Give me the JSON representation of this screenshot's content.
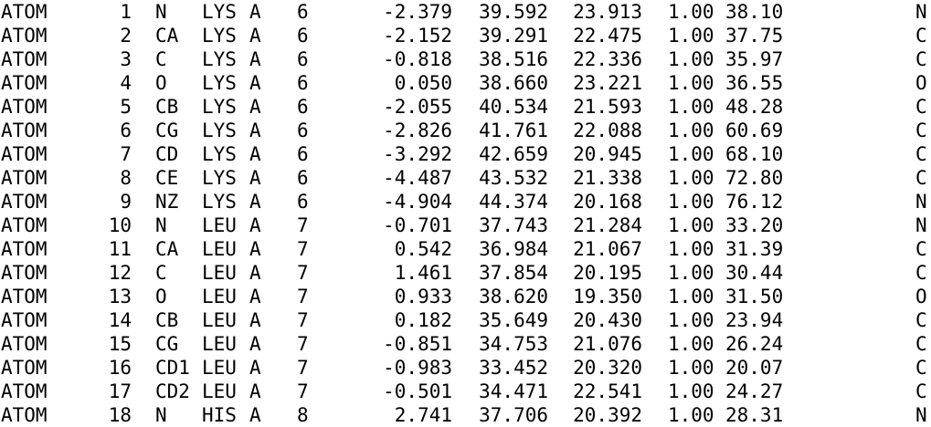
{
  "pdb_listing": {
    "rows": [
      {
        "record": "ATOM",
        "serial": "1",
        "atom": "N",
        "residue": "LYS",
        "chain": "A",
        "seq": "6",
        "x": "-2.379",
        "y": "39.592",
        "z": "23.913",
        "occupancy": "1.00",
        "bfactor": "38.10",
        "element": "N"
      },
      {
        "record": "ATOM",
        "serial": "2",
        "atom": "CA",
        "residue": "LYS",
        "chain": "A",
        "seq": "6",
        "x": "-2.152",
        "y": "39.291",
        "z": "22.475",
        "occupancy": "1.00",
        "bfactor": "37.75",
        "element": "C"
      },
      {
        "record": "ATOM",
        "serial": "3",
        "atom": "C",
        "residue": "LYS",
        "chain": "A",
        "seq": "6",
        "x": "-0.818",
        "y": "38.516",
        "z": "22.336",
        "occupancy": "1.00",
        "bfactor": "35.97",
        "element": "C"
      },
      {
        "record": "ATOM",
        "serial": "4",
        "atom": "O",
        "residue": "LYS",
        "chain": "A",
        "seq": "6",
        "x": "0.050",
        "y": "38.660",
        "z": "23.221",
        "occupancy": "1.00",
        "bfactor": "36.55",
        "element": "O"
      },
      {
        "record": "ATOM",
        "serial": "5",
        "atom": "CB",
        "residue": "LYS",
        "chain": "A",
        "seq": "6",
        "x": "-2.055",
        "y": "40.534",
        "z": "21.593",
        "occupancy": "1.00",
        "bfactor": "48.28",
        "element": "C"
      },
      {
        "record": "ATOM",
        "serial": "6",
        "atom": "CG",
        "residue": "LYS",
        "chain": "A",
        "seq": "6",
        "x": "-2.826",
        "y": "41.761",
        "z": "22.088",
        "occupancy": "1.00",
        "bfactor": "60.69",
        "element": "C"
      },
      {
        "record": "ATOM",
        "serial": "7",
        "atom": "CD",
        "residue": "LYS",
        "chain": "A",
        "seq": "6",
        "x": "-3.292",
        "y": "42.659",
        "z": "20.945",
        "occupancy": "1.00",
        "bfactor": "68.10",
        "element": "C"
      },
      {
        "record": "ATOM",
        "serial": "8",
        "atom": "CE",
        "residue": "LYS",
        "chain": "A",
        "seq": "6",
        "x": "-4.487",
        "y": "43.532",
        "z": "21.338",
        "occupancy": "1.00",
        "bfactor": "72.80",
        "element": "C"
      },
      {
        "record": "ATOM",
        "serial": "9",
        "atom": "NZ",
        "residue": "LYS",
        "chain": "A",
        "seq": "6",
        "x": "-4.904",
        "y": "44.374",
        "z": "20.168",
        "occupancy": "1.00",
        "bfactor": "76.12",
        "element": "N"
      },
      {
        "record": "ATOM",
        "serial": "10",
        "atom": "N",
        "residue": "LEU",
        "chain": "A",
        "seq": "7",
        "x": "-0.701",
        "y": "37.743",
        "z": "21.284",
        "occupancy": "1.00",
        "bfactor": "33.20",
        "element": "N"
      },
      {
        "record": "ATOM",
        "serial": "11",
        "atom": "CA",
        "residue": "LEU",
        "chain": "A",
        "seq": "7",
        "x": "0.542",
        "y": "36.984",
        "z": "21.067",
        "occupancy": "1.00",
        "bfactor": "31.39",
        "element": "C"
      },
      {
        "record": "ATOM",
        "serial": "12",
        "atom": "C",
        "residue": "LEU",
        "chain": "A",
        "seq": "7",
        "x": "1.461",
        "y": "37.854",
        "z": "20.195",
        "occupancy": "1.00",
        "bfactor": "30.44",
        "element": "C"
      },
      {
        "record": "ATOM",
        "serial": "13",
        "atom": "O",
        "residue": "LEU",
        "chain": "A",
        "seq": "7",
        "x": "0.933",
        "y": "38.620",
        "z": "19.350",
        "occupancy": "1.00",
        "bfactor": "31.50",
        "element": "O"
      },
      {
        "record": "ATOM",
        "serial": "14",
        "atom": "CB",
        "residue": "LEU",
        "chain": "A",
        "seq": "7",
        "x": "0.182",
        "y": "35.649",
        "z": "20.430",
        "occupancy": "1.00",
        "bfactor": "23.94",
        "element": "C"
      },
      {
        "record": "ATOM",
        "serial": "15",
        "atom": "CG",
        "residue": "LEU",
        "chain": "A",
        "seq": "7",
        "x": "-0.851",
        "y": "34.753",
        "z": "21.076",
        "occupancy": "1.00",
        "bfactor": "26.24",
        "element": "C"
      },
      {
        "record": "ATOM",
        "serial": "16",
        "atom": "CD1",
        "residue": "LEU",
        "chain": "A",
        "seq": "7",
        "x": "-0.983",
        "y": "33.452",
        "z": "20.320",
        "occupancy": "1.00",
        "bfactor": "20.07",
        "element": "C"
      },
      {
        "record": "ATOM",
        "serial": "17",
        "atom": "CD2",
        "residue": "LEU",
        "chain": "A",
        "seq": "7",
        "x": "-0.501",
        "y": "34.471",
        "z": "22.541",
        "occupancy": "1.00",
        "bfactor": "24.27",
        "element": "C"
      },
      {
        "record": "ATOM",
        "serial": "18",
        "atom": "N",
        "residue": "HIS",
        "chain": "A",
        "seq": "8",
        "x": "2.741",
        "y": "37.706",
        "z": "20.392",
        "occupancy": "1.00",
        "bfactor": "28.31",
        "element": "N"
      }
    ]
  }
}
